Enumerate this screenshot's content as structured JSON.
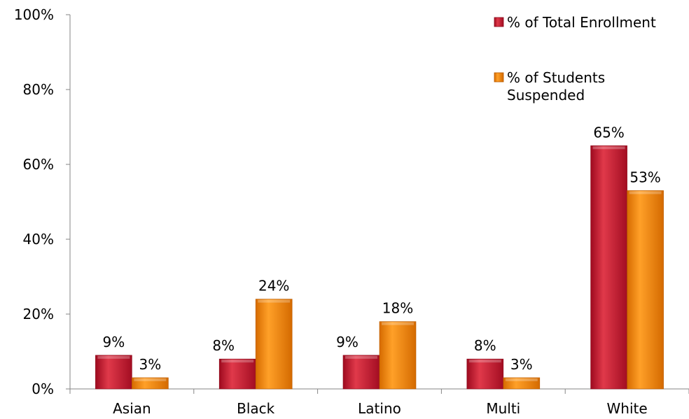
{
  "chart_data": {
    "type": "bar",
    "categories": [
      "Asian",
      "Black",
      "Latino",
      "Multi",
      "White"
    ],
    "series": [
      {
        "name": "% of Total Enrollment",
        "values": [
          9,
          8,
          9,
          8,
          65
        ],
        "labels": [
          "9%",
          "8%",
          "9%",
          "8%",
          "65%"
        ],
        "color": "#c8102e"
      },
      {
        "name": "% of Students Suspended",
        "values": [
          3,
          24,
          18,
          3,
          53
        ],
        "labels": [
          "3%",
          "24%",
          "18%",
          "3%",
          "53%"
        ],
        "color": "#f28a00"
      }
    ],
    "y_ticks": [
      "0%",
      "20%",
      "40%",
      "60%",
      "80%",
      "100%"
    ],
    "ylim": [
      0,
      100
    ],
    "grid": false,
    "legend_position": "top-right"
  }
}
